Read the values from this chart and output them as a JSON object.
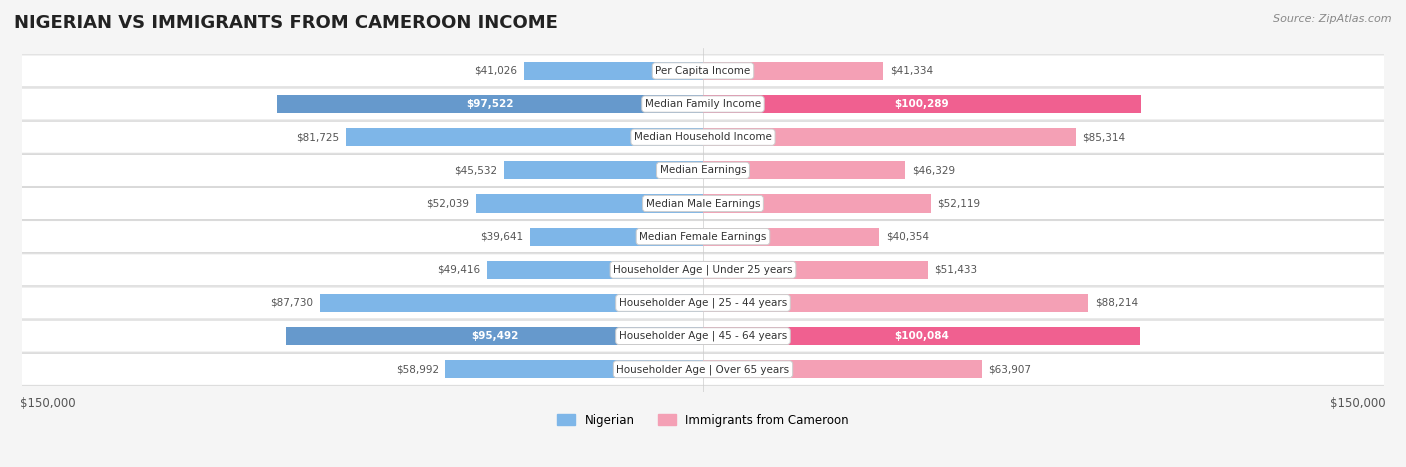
{
  "title": "NIGERIAN VS IMMIGRANTS FROM CAMEROON INCOME",
  "source": "Source: ZipAtlas.com",
  "categories": [
    "Per Capita Income",
    "Median Family Income",
    "Median Household Income",
    "Median Earnings",
    "Median Male Earnings",
    "Median Female Earnings",
    "Householder Age | Under 25 years",
    "Householder Age | 25 - 44 years",
    "Householder Age | 45 - 64 years",
    "Householder Age | Over 65 years"
  ],
  "nigerian_values": [
    41026,
    97522,
    81725,
    45532,
    52039,
    39641,
    49416,
    87730,
    95492,
    58992
  ],
  "cameroon_values": [
    41334,
    100289,
    85314,
    46329,
    52119,
    40354,
    51433,
    88214,
    100084,
    63907
  ],
  "nigerian_color": "#7EB6E8",
  "nigerian_color_highlight": "#6699CC",
  "cameroon_color": "#F4A0B5",
  "cameroon_color_highlight": "#F06090",
  "nigerian_highlight": [
    1,
    8
  ],
  "cameroon_highlight": [
    1,
    8
  ],
  "max_value": 150000,
  "bg_color": "#f5f5f5",
  "bar_bg_color": "#ffffff",
  "label_bg_color": "#ffffff",
  "legend_nigerian": "Nigerian",
  "legend_cameroon": "Immigrants from Cameroon",
  "nigerian_label_color_normal": "#555555",
  "nigerian_label_color_highlight": "#ffffff",
  "cameroon_label_color_normal": "#555555",
  "cameroon_label_color_highlight": "#ffffff"
}
